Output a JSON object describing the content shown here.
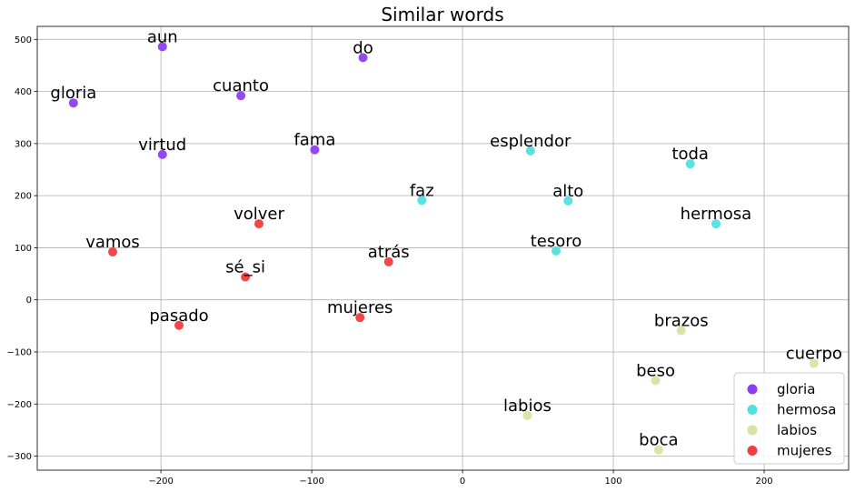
{
  "chart_data": {
    "type": "scatter",
    "title": "Similar words",
    "xlabel": "",
    "ylabel": "",
    "xlim": [
      -282,
      256
    ],
    "ylim": [
      -327,
      525
    ],
    "xticks": [
      -200,
      -100,
      0,
      100,
      200
    ],
    "yticks": [
      -300,
      -200,
      -100,
      0,
      100,
      200,
      300,
      400,
      500
    ],
    "grid": true,
    "legend_position": "bottom-right",
    "series": [
      {
        "name": "gloria",
        "color": "#8f3df2",
        "points": [
          {
            "label": "aun",
            "x": -199,
            "y": 486
          },
          {
            "label": "do",
            "x": -66,
            "y": 465
          },
          {
            "label": "gloria",
            "x": -258,
            "y": 378
          },
          {
            "label": "cuanto",
            "x": -147,
            "y": 392
          },
          {
            "label": "virtud",
            "x": -199,
            "y": 279
          },
          {
            "label": "fama",
            "x": -98,
            "y": 288
          }
        ]
      },
      {
        "name": "hermosa",
        "color": "#50dfe3",
        "points": [
          {
            "label": "esplendor",
            "x": 45,
            "y": 286
          },
          {
            "label": "toda",
            "x": 151,
            "y": 261
          },
          {
            "label": "faz",
            "x": -27,
            "y": 191
          },
          {
            "label": "alto",
            "x": 70,
            "y": 190
          },
          {
            "label": "hermosa",
            "x": 168,
            "y": 146
          },
          {
            "label": "tesoro",
            "x": 62,
            "y": 94
          }
        ]
      },
      {
        "name": "labios",
        "color": "#d5e4a1",
        "points": [
          {
            "label": "brazos",
            "x": 145,
            "y": -59
          },
          {
            "label": "cuerpo",
            "x": 233,
            "y": -122
          },
          {
            "label": "beso",
            "x": 128,
            "y": -155
          },
          {
            "label": "labios",
            "x": 43,
            "y": -222
          },
          {
            "label": "boca",
            "x": 130,
            "y": -288
          }
        ]
      },
      {
        "name": "mujeres",
        "color": "#f23d3d",
        "points": [
          {
            "label": "volver",
            "x": -135,
            "y": 146
          },
          {
            "label": "vamos",
            "x": -232,
            "y": 92
          },
          {
            "label": "atrás",
            "x": -49,
            "y": 73
          },
          {
            "label": "sé_si",
            "x": -144,
            "y": 44
          },
          {
            "label": "mujeres",
            "x": -68,
            "y": -34
          },
          {
            "label": "pasado",
            "x": -188,
            "y": -49
          }
        ]
      }
    ]
  }
}
